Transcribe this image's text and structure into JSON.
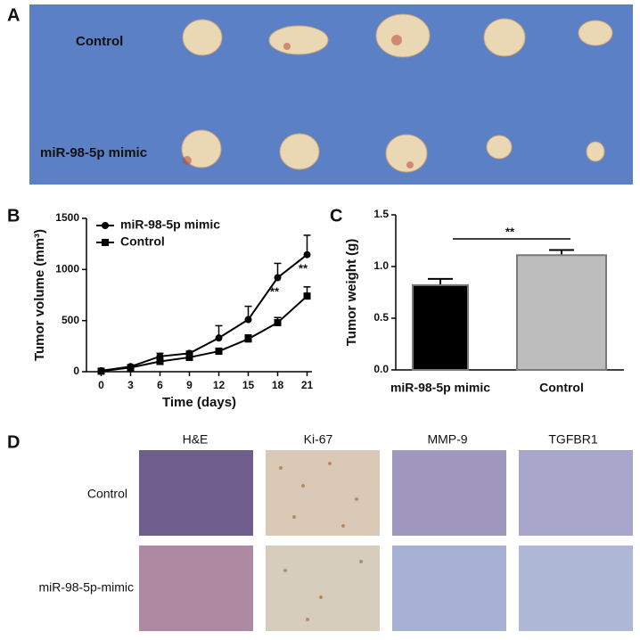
{
  "panels": {
    "a": "A",
    "b": "B",
    "c": "C",
    "d": "D"
  },
  "photo_labels": [
    "Control",
    "miR-98-5p mimic"
  ],
  "histology": {
    "columns": [
      "H&E",
      "Ki-67",
      "MMP-9",
      "TGFBR1"
    ],
    "rows": [
      "Control",
      "miR-98-5p-mimic"
    ]
  },
  "chart_data": [
    {
      "type": "line",
      "x_label": "Time (days)",
      "y_label": "Tumor volume (mm³)",
      "x": [
        0,
        3,
        6,
        9,
        12,
        15,
        18,
        21
      ],
      "xlim": [
        -1.5,
        21.5
      ],
      "xticks": [
        0,
        3,
        6,
        9,
        12,
        15,
        18,
        21
      ],
      "ylim": [
        0,
        1500
      ],
      "yticks": [
        0,
        500,
        1000,
        1500
      ],
      "series": [
        {
          "name": "miR-98-5p mimic",
          "color": "#000000",
          "marker": "circle",
          "values": [
            10,
            50,
            150,
            180,
            330,
            510,
            920,
            1145
          ],
          "errors": [
            5,
            10,
            30,
            20,
            120,
            130,
            140,
            190
          ]
        },
        {
          "name": "Control",
          "color": "#000000",
          "marker": "square",
          "values": [
            5,
            40,
            100,
            140,
            200,
            320,
            480,
            740
          ],
          "errors": [
            5,
            10,
            20,
            20,
            30,
            40,
            50,
            90
          ]
        }
      ],
      "annotations": [
        "**",
        "**"
      ]
    },
    {
      "type": "bar",
      "y_label": "Tumor weight (g)",
      "categories": [
        "miR-98-5p mimic",
        "Control"
      ],
      "values": [
        0.82,
        1.11
      ],
      "errors": [
        0.06,
        0.05
      ],
      "colors": [
        "#000000",
        "#bdbdbd"
      ],
      "ylim": [
        0,
        1.5
      ],
      "yticks": [
        {
          "value": 0,
          "label": "0.0"
        },
        0.5,
        {
          "value": 1,
          "label": "1.0"
        },
        1.5
      ],
      "annotations": [
        "**"
      ]
    }
  ]
}
